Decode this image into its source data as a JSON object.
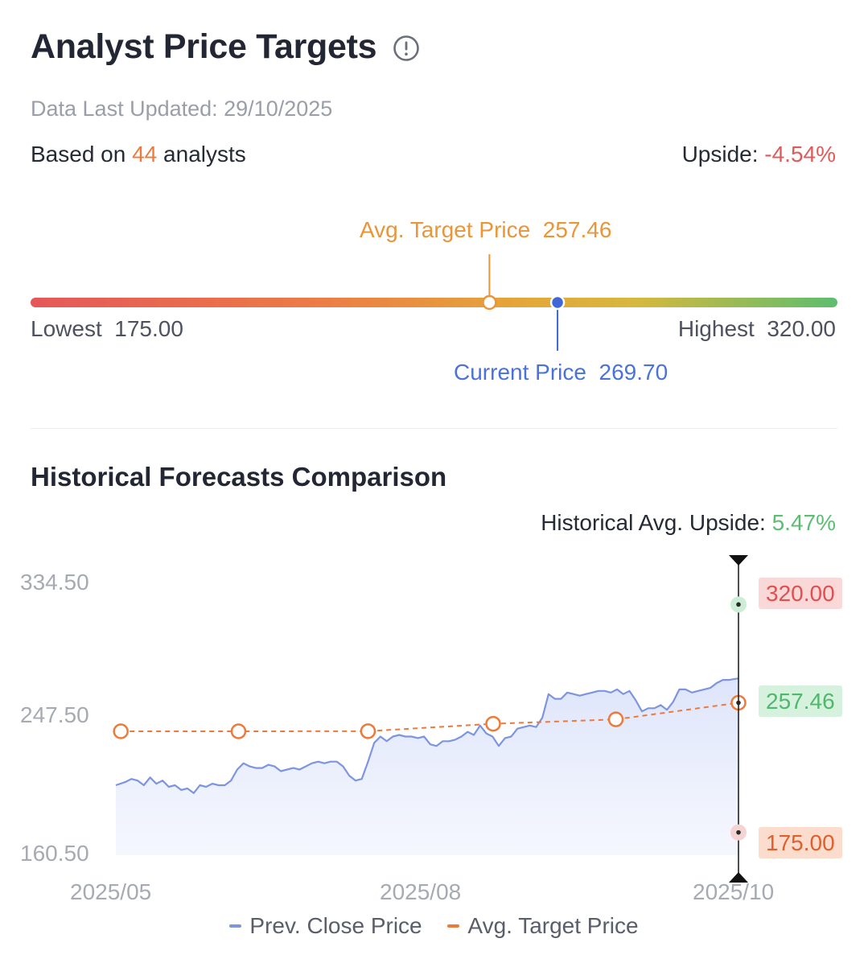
{
  "header": {
    "title": "Analyst Price Targets",
    "info_icon": "info-circle-icon",
    "updated": "Data Last Updated: 29/10/2025",
    "based_prefix": "Based on ",
    "analysts": "44",
    "based_suffix": " analysts",
    "upside_label": "Upside: ",
    "upside_value": "-4.54%"
  },
  "range": {
    "avg_label": "Avg. Target Price",
    "avg_value": "257.46",
    "current_label": "Current Price",
    "current_value": "269.70",
    "lowest_label": "Lowest",
    "lowest_value": "175.00",
    "highest_label": "Highest",
    "highest_value": "320.00",
    "low": 175.0,
    "high": 320.0,
    "avg": 257.46,
    "current": 269.7
  },
  "historical": {
    "title": "Historical Forecasts Comparison",
    "upside_label": "Historical Avg. Upside: ",
    "upside_value": "5.47%"
  },
  "colors": {
    "accent_orange": "#ED7A3B",
    "negative": "#E05A5A",
    "positive": "#5CBD73",
    "current_blue": "#3F67D6",
    "price_line": "#7D95E0"
  },
  "chart_data": {
    "type": "line",
    "ylim": [
      160.5,
      334.5
    ],
    "yticks": [
      "334.50",
      "247.50",
      "160.50"
    ],
    "xticks": [
      "2025/05",
      "2025/08",
      "2025/10"
    ],
    "tags": {
      "high": "320.00",
      "avg": "257.46",
      "low": "175.00"
    },
    "legend": [
      "Prev. Close Price",
      "Avg. Target Price"
    ],
    "series": [
      {
        "name": "Prev. Close Price",
        "x": [
          0.0,
          0.015,
          0.025,
          0.035,
          0.045,
          0.055,
          0.065,
          0.075,
          0.085,
          0.095,
          0.105,
          0.115,
          0.125,
          0.135,
          0.145,
          0.155,
          0.165,
          0.175,
          0.185,
          0.195,
          0.205,
          0.215,
          0.225,
          0.235,
          0.245,
          0.255,
          0.265,
          0.275,
          0.285,
          0.295,
          0.305,
          0.315,
          0.325,
          0.335,
          0.345,
          0.355,
          0.365,
          0.375,
          0.385,
          0.395,
          0.405,
          0.415,
          0.425,
          0.435,
          0.445,
          0.455,
          0.465,
          0.475,
          0.485,
          0.495,
          0.505,
          0.515,
          0.525,
          0.535,
          0.545,
          0.555,
          0.565,
          0.575,
          0.585,
          0.595,
          0.605,
          0.615,
          0.625,
          0.635,
          0.645,
          0.655,
          0.665,
          0.675,
          0.685,
          0.695,
          0.705,
          0.715,
          0.725,
          0.735,
          0.745,
          0.755,
          0.765,
          0.775,
          0.785,
          0.795,
          0.805,
          0.815,
          0.825,
          0.835,
          0.845,
          0.855,
          0.865,
          0.875,
          0.885,
          0.895,
          0.905,
          0.915,
          0.925,
          0.935,
          0.945,
          0.955,
          0.965,
          0.975,
          0.985,
          1.0
        ],
        "y": [
          205,
          207,
          209,
          208,
          205,
          210,
          206,
          208,
          204,
          205,
          202,
          203,
          200,
          205,
          204,
          206,
          205,
          205,
          208,
          215,
          219,
          217,
          216,
          216,
          218,
          217,
          214,
          215,
          216,
          215,
          217,
          219,
          220,
          219,
          220,
          220,
          217,
          211,
          208,
          209,
          220,
          232,
          236,
          233,
          236,
          237,
          236,
          236,
          235,
          236,
          231,
          230,
          233,
          233,
          234,
          236,
          239,
          237,
          243,
          238,
          236,
          230,
          235,
          236,
          241,
          242,
          243,
          242,
          248,
          263,
          260,
          260,
          264,
          263,
          262,
          263,
          264,
          265,
          265,
          264,
          266,
          263,
          265,
          259,
          252,
          254,
          254,
          256,
          253,
          258,
          266,
          266,
          264,
          265,
          266,
          267,
          270,
          272,
          272,
          273
        ]
      },
      {
        "name": "Avg. Target Price",
        "x": [
          0.008,
          0.197,
          0.405,
          0.606,
          0.803,
          1.0
        ],
        "y": [
          239.3,
          239.3,
          239.4,
          244.1,
          246.9,
          257.46
        ]
      }
    ]
  }
}
